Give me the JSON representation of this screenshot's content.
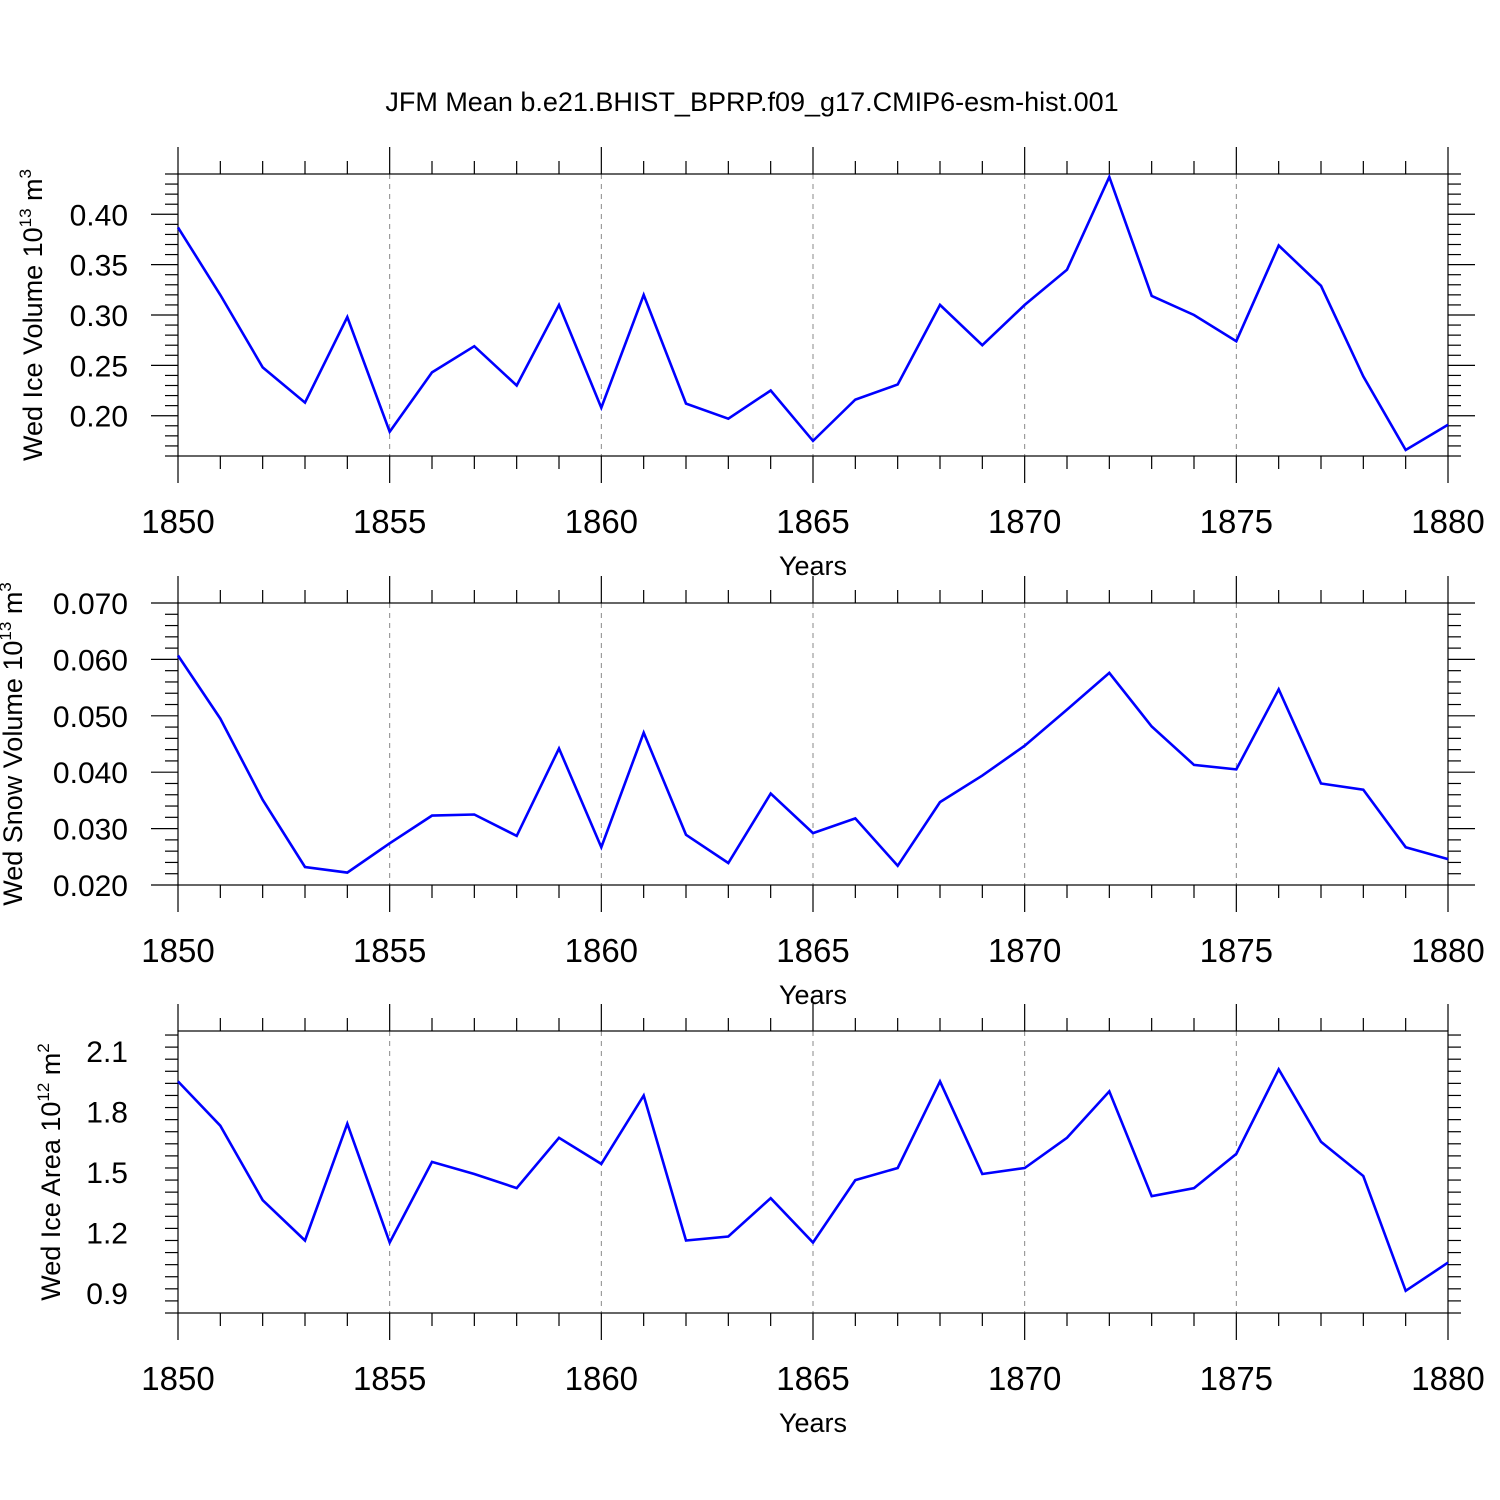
{
  "title": "JFM Mean b.e21.BHIST_BPRP.f09_g17.CMIP6-esm-hist.001",
  "line_color": "#0000ff",
  "chart_data": [
    {
      "type": "line",
      "ylabel_text": "Wed Ice Volume 10",
      "ylabel_exp": "13",
      "ylabel_unit": " m",
      "ylabel_unit_exp": "3",
      "xlabel": "Years",
      "xlim": [
        1850,
        1880
      ],
      "ylim": [
        0.16,
        0.44
      ],
      "y_ticks": [
        0.2,
        0.25,
        0.3,
        0.35,
        0.4
      ],
      "y_tick_labels": [
        "0.20",
        "0.25",
        "0.30",
        "0.35",
        "0.40"
      ],
      "x_ticks": [
        1850,
        1855,
        1860,
        1865,
        1870,
        1875,
        1880
      ],
      "x_tick_labels": [
        "1850",
        "1855",
        "1860",
        "1865",
        "1870",
        "1875",
        "1880"
      ],
      "series": [
        {
          "name": "Wed Ice Volume",
          "x": [
            1850,
            1851,
            1852,
            1853,
            1854,
            1855,
            1856,
            1857,
            1858,
            1859,
            1860,
            1861,
            1862,
            1863,
            1864,
            1865,
            1866,
            1867,
            1868,
            1869,
            1870,
            1871,
            1872,
            1873,
            1874,
            1875,
            1876,
            1877,
            1878,
            1879,
            1880
          ],
          "values": [
            0.387,
            0.32,
            0.248,
            0.213,
            0.298,
            0.184,
            0.243,
            0.269,
            0.23,
            0.31,
            0.208,
            0.32,
            0.212,
            0.197,
            0.225,
            0.175,
            0.216,
            0.231,
            0.31,
            0.27,
            0.31,
            0.345,
            0.437,
            0.319,
            0.3,
            0.274,
            0.369,
            0.329,
            0.239,
            0.166,
            0.191
          ]
        }
      ]
    },
    {
      "type": "line",
      "ylabel_text": "Wed Snow Volume 10",
      "ylabel_exp": "13",
      "ylabel_unit": " m",
      "ylabel_unit_exp": "3",
      "xlabel": "Years",
      "xlim": [
        1850,
        1880
      ],
      "ylim": [
        0.02,
        0.07
      ],
      "y_ticks": [
        0.02,
        0.03,
        0.04,
        0.05,
        0.06,
        0.07
      ],
      "y_tick_labels": [
        "0.020",
        "0.030",
        "0.040",
        "0.050",
        "0.060",
        "0.070"
      ],
      "x_ticks": [
        1850,
        1855,
        1860,
        1865,
        1870,
        1875,
        1880
      ],
      "x_tick_labels": [
        "1850",
        "1855",
        "1860",
        "1865",
        "1870",
        "1875",
        "1880"
      ],
      "series": [
        {
          "name": "Wed Snow Volume",
          "x": [
            1850,
            1851,
            1852,
            1853,
            1854,
            1855,
            1856,
            1857,
            1858,
            1859,
            1860,
            1861,
            1862,
            1863,
            1864,
            1865,
            1866,
            1867,
            1868,
            1869,
            1870,
            1871,
            1872,
            1873,
            1874,
            1875,
            1876,
            1877,
            1878,
            1879,
            1880
          ],
          "values": [
            0.0607,
            0.0495,
            0.0351,
            0.0232,
            0.0222,
            0.0274,
            0.0323,
            0.0325,
            0.0287,
            0.0442,
            0.0267,
            0.047,
            0.0289,
            0.0239,
            0.0362,
            0.0292,
            0.0318,
            0.0234,
            0.0347,
            0.0394,
            0.0447,
            0.0511,
            0.0576,
            0.0481,
            0.0413,
            0.0405,
            0.0547,
            0.038,
            0.0369,
            0.0267,
            0.0246
          ]
        }
      ]
    },
    {
      "type": "line",
      "ylabel_text": "Wed Ice Area 10",
      "ylabel_exp": "12",
      "ylabel_unit": " m",
      "ylabel_unit_exp": "2",
      "xlabel": "Years",
      "xlim": [
        1850,
        1880
      ],
      "ylim": [
        0.8,
        2.2
      ],
      "y_ticks": [
        0.9,
        1.2,
        1.5,
        1.8,
        2.1
      ],
      "y_tick_labels": [
        "0.9",
        "1.2",
        "1.5",
        "1.8",
        "2.1"
      ],
      "x_ticks": [
        1850,
        1855,
        1860,
        1865,
        1870,
        1875,
        1880
      ],
      "x_tick_labels": [
        "1850",
        "1855",
        "1860",
        "1865",
        "1870",
        "1875",
        "1880"
      ],
      "series": [
        {
          "name": "Wed Ice Area",
          "x": [
            1850,
            1851,
            1852,
            1853,
            1854,
            1855,
            1856,
            1857,
            1858,
            1859,
            1860,
            1861,
            1862,
            1863,
            1864,
            1865,
            1866,
            1867,
            1868,
            1869,
            1870,
            1871,
            1872,
            1873,
            1874,
            1875,
            1876,
            1877,
            1878,
            1879,
            1880
          ],
          "values": [
            1.95,
            1.73,
            1.36,
            1.16,
            1.74,
            1.15,
            1.55,
            1.49,
            1.42,
            1.67,
            1.54,
            1.88,
            1.16,
            1.18,
            1.37,
            1.15,
            1.46,
            1.52,
            1.95,
            1.49,
            1.52,
            1.67,
            1.9,
            1.38,
            1.42,
            1.59,
            2.01,
            1.65,
            1.48,
            0.91,
            1.05
          ]
        }
      ]
    }
  ]
}
